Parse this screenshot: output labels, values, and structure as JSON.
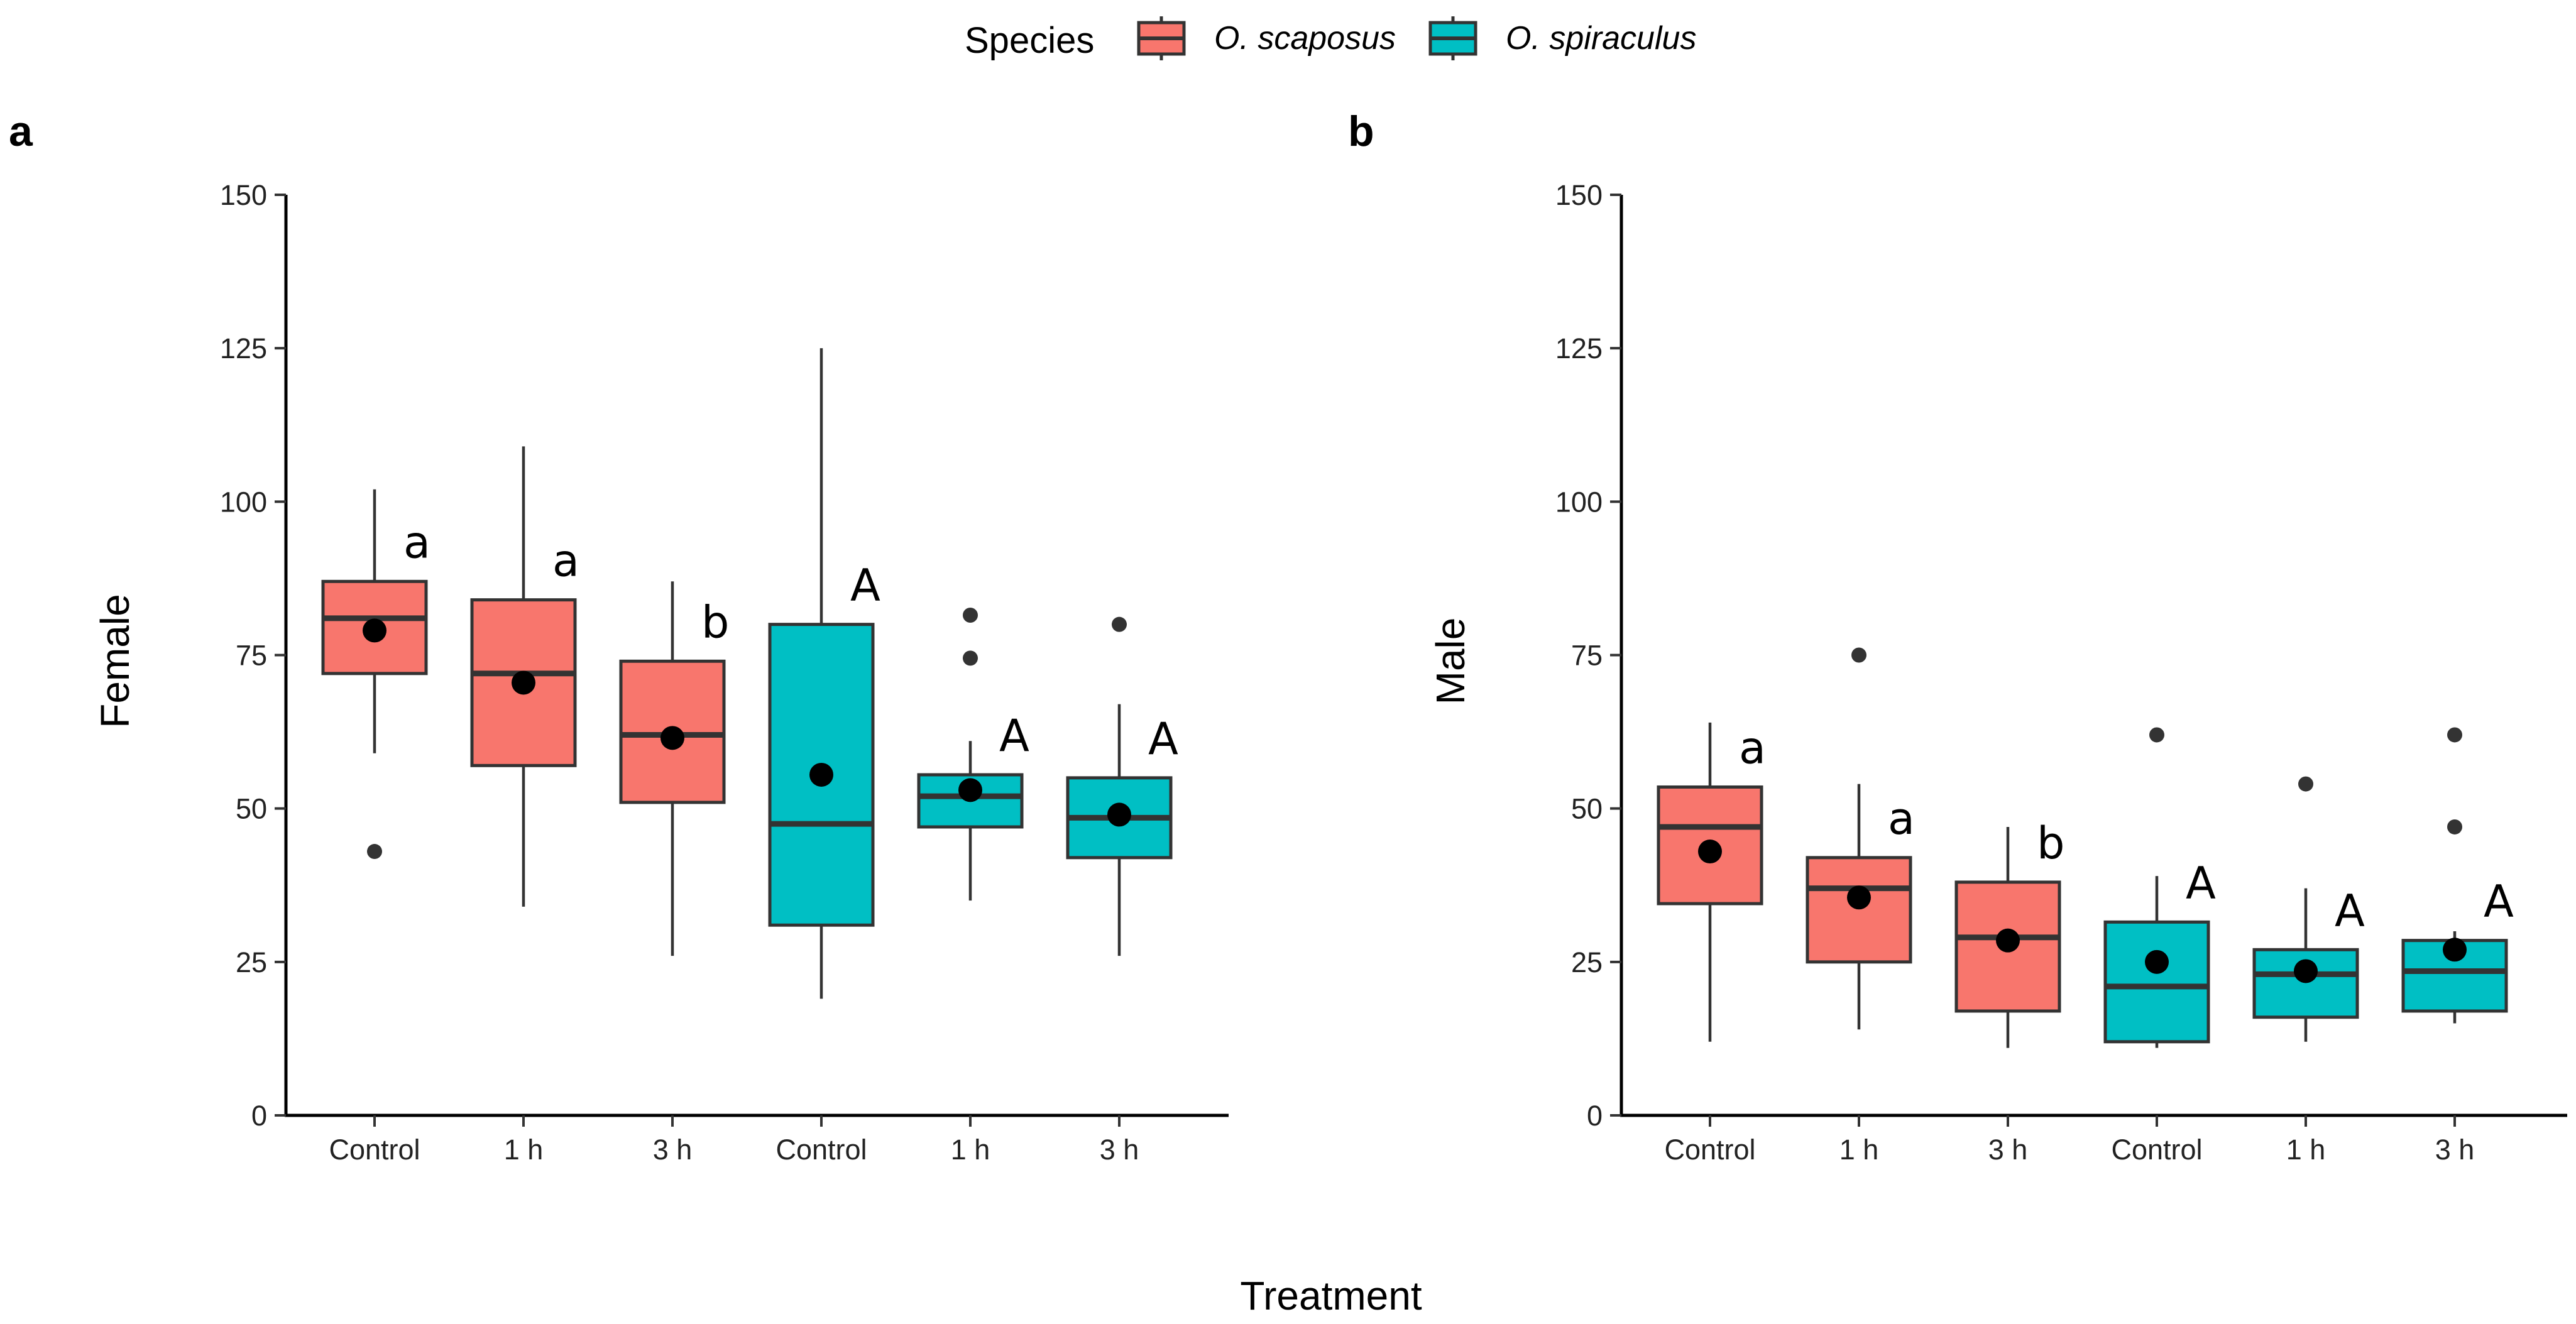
{
  "colors": {
    "scaposus": "#F8766D",
    "spiraculus": "#00BFC4",
    "outline": "#333333",
    "mean": "#000000"
  },
  "legend": {
    "title": "Species",
    "entries": [
      {
        "label": "O. scaposus",
        "color": "#F8766D"
      },
      {
        "label": "O. spiraculus",
        "color": "#00BFC4"
      }
    ]
  },
  "x_axis_title": "Treatment",
  "chart_data": [
    {
      "type": "boxplot",
      "panel": "a",
      "ylabel": "Female",
      "xlabel": "Treatment",
      "ylim": [
        0,
        150
      ],
      "yticks": [
        0,
        25,
        50,
        75,
        100,
        125,
        150
      ],
      "categories": [
        "Control",
        "1 h",
        "3 h",
        "Control",
        "1 h",
        "3 h"
      ],
      "groups": [
        {
          "category": "Control",
          "species": "O. scaposus",
          "whisker_low": 59,
          "q1": 72,
          "median": 81,
          "q3": 87,
          "whisker_high": 102,
          "mean": 79,
          "outliers": [
            43
          ],
          "sig": "a"
        },
        {
          "category": "1 h",
          "species": "O. scaposus",
          "whisker_low": 34,
          "q1": 57,
          "median": 72,
          "q3": 84,
          "whisker_high": 109,
          "mean": 70.5,
          "outliers": [],
          "sig": "a"
        },
        {
          "category": "3 h",
          "species": "O. scaposus",
          "whisker_low": 26,
          "q1": 51,
          "median": 62,
          "q3": 74,
          "whisker_high": 87,
          "mean": 61.5,
          "outliers": [],
          "sig": "b"
        },
        {
          "category": "Control",
          "species": "O. spiraculus",
          "whisker_low": 19,
          "q1": 31,
          "median": 47.5,
          "q3": 80,
          "whisker_high": 125,
          "mean": 55.5,
          "outliers": [],
          "sig": "A"
        },
        {
          "category": "1 h",
          "species": "O. spiraculus",
          "whisker_low": 35,
          "q1": 47,
          "median": 52,
          "q3": 55.5,
          "whisker_high": 61,
          "mean": 53,
          "outliers": [
            74.5,
            81.5
          ],
          "sig": "A"
        },
        {
          "category": "3 h",
          "species": "O. spiraculus",
          "whisker_low": 26,
          "q1": 42,
          "median": 48.5,
          "q3": 55,
          "whisker_high": 67,
          "mean": 49,
          "outliers": [
            80
          ],
          "sig": "A"
        }
      ]
    },
    {
      "type": "boxplot",
      "panel": "b",
      "ylabel": "Male",
      "xlabel": "Treatment",
      "ylim": [
        0,
        150
      ],
      "yticks": [
        0,
        25,
        50,
        75,
        100,
        125,
        150
      ],
      "categories": [
        "Control",
        "1 h",
        "3 h",
        "Control",
        "1 h",
        "3 h"
      ],
      "groups": [
        {
          "category": "Control",
          "species": "O. scaposus",
          "whisker_low": 12,
          "q1": 34.5,
          "median": 47,
          "q3": 53.5,
          "whisker_high": 64,
          "mean": 43,
          "outliers": [],
          "sig": "a"
        },
        {
          "category": "1 h",
          "species": "O. scaposus",
          "whisker_low": 14,
          "q1": 25,
          "median": 37,
          "q3": 42,
          "whisker_high": 54,
          "mean": 35.5,
          "outliers": [
            75
          ],
          "sig": "a"
        },
        {
          "category": "3 h",
          "species": "O. scaposus",
          "whisker_low": 11,
          "q1": 17,
          "median": 29,
          "q3": 38,
          "whisker_high": 47,
          "mean": 28.5,
          "outliers": [],
          "sig": "b"
        },
        {
          "category": "Control",
          "species": "O. spiraculus",
          "whisker_low": 11,
          "q1": 12,
          "median": 21,
          "q3": 31.5,
          "whisker_high": 39,
          "mean": 25,
          "outliers": [
            62
          ],
          "sig": "A"
        },
        {
          "category": "1 h",
          "species": "O. spiraculus",
          "whisker_low": 12,
          "q1": 16,
          "median": 23,
          "q3": 27,
          "whisker_high": 37,
          "mean": 23.5,
          "outliers": [
            54
          ],
          "sig": "A"
        },
        {
          "category": "3 h",
          "species": "O. spiraculus",
          "whisker_low": 15,
          "q1": 17,
          "median": 23.5,
          "q3": 28.5,
          "whisker_high": 30,
          "mean": 27,
          "outliers": [
            47,
            62
          ],
          "sig": "A"
        }
      ]
    }
  ]
}
